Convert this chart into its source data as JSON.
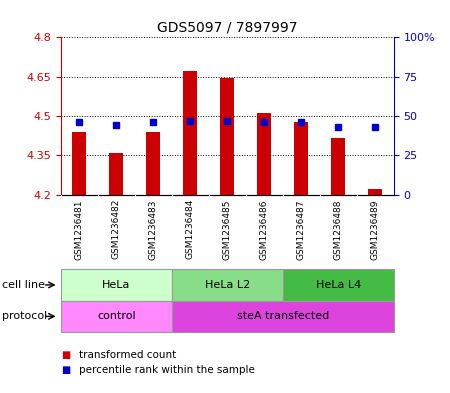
{
  "title": "GDS5097 / 7897997",
  "samples": [
    "GSM1236481",
    "GSM1236482",
    "GSM1236483",
    "GSM1236484",
    "GSM1236485",
    "GSM1236486",
    "GSM1236487",
    "GSM1236488",
    "GSM1236489"
  ],
  "transformed_count": [
    4.44,
    4.36,
    4.44,
    4.67,
    4.645,
    4.51,
    4.475,
    4.415,
    4.22
  ],
  "percentile_rank": [
    46,
    44,
    46,
    47,
    47,
    46,
    46,
    43,
    43
  ],
  "y_min": 4.2,
  "y_max": 4.8,
  "y_left_ticks": [
    4.2,
    4.35,
    4.5,
    4.65,
    4.8
  ],
  "y_right_ticks": [
    0,
    25,
    50,
    75,
    100
  ],
  "y_right_labels": [
    "0",
    "25",
    "50",
    "75",
    "100%"
  ],
  "bar_color": "#cc0000",
  "dot_color": "#0000cc",
  "cell_line_groups": [
    {
      "label": "HeLa",
      "start": 0,
      "end": 3,
      "color": "#ccffcc"
    },
    {
      "label": "HeLa L2",
      "start": 3,
      "end": 6,
      "color": "#88dd88"
    },
    {
      "label": "HeLa L4",
      "start": 6,
      "end": 9,
      "color": "#44bb44"
    }
  ],
  "protocol_groups": [
    {
      "label": "control",
      "start": 0,
      "end": 3,
      "color": "#ff88ff"
    },
    {
      "label": "steA transfected",
      "start": 3,
      "end": 9,
      "color": "#dd44dd"
    }
  ],
  "legend_red": "transformed count",
  "legend_blue": "percentile rank within the sample",
  "left_axis_color": "#cc0000",
  "right_axis_color": "#0000cc",
  "sample_bg": "#d8d8d8",
  "bar_width": 0.38
}
